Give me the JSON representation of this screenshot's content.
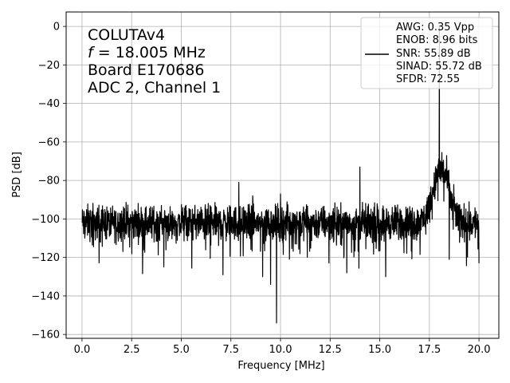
{
  "chart_data": {
    "type": "line",
    "xlabel": "Frequency [MHz]",
    "ylabel": "PSD [dB]",
    "xlim": [
      -0.8,
      21.0
    ],
    "ylim": [
      -162,
      7.5
    ],
    "xticks": [
      0.0,
      2.5,
      5.0,
      7.5,
      10.0,
      12.5,
      15.0,
      17.5,
      20.0
    ],
    "xtick_labels": [
      "0.0",
      "2.5",
      "5.0",
      "7.5",
      "10.0",
      "12.5",
      "15.0",
      "17.5",
      "20.0"
    ],
    "yticks": [
      0,
      -20,
      -40,
      -60,
      -80,
      -100,
      -120,
      -140,
      -160
    ],
    "ytick_labels": [
      "0",
      "−20",
      "−40",
      "−60",
      "−80",
      "−100",
      "−120",
      "−140",
      "−160"
    ],
    "grid": true,
    "line_color": "#000000",
    "annotation": {
      "line1": "COLUTAv4",
      "line2_var": "f",
      "line2_rest": " = 18.005 MHz",
      "line3": "Board E170686",
      "line4": "ADC 2, Channel 1"
    },
    "legend": {
      "placement": "top-right",
      "lines": [
        "AWG: 0.35 Vpp",
        "ENOB: 8.96 bits",
        "SNR: 55.89 dB",
        "SINAD: 55.72 dB",
        "SFDR: 72.55"
      ]
    },
    "series": [
      {
        "noise_floor_db": -102,
        "noise_spread_db": 7,
        "x_range": [
          0.0,
          20.0
        ],
        "signal_peak": {
          "x": 18.005,
          "y": 0
        },
        "spurs": [
          {
            "x": 4.0,
            "y": -93
          },
          {
            "x": 7.9,
            "y": -81
          },
          {
            "x": 8.6,
            "y": -88
          },
          {
            "x": 10.0,
            "y": -87
          },
          {
            "x": 14.0,
            "y": -73
          },
          {
            "x": 17.05,
            "y": -98
          },
          {
            "x": 18.6,
            "y": -86
          },
          {
            "x": 20.0,
            "y": -83
          }
        ],
        "dips": [
          {
            "x": 7.1,
            "y": -129
          },
          {
            "x": 9.1,
            "y": -130
          },
          {
            "x": 9.5,
            "y": -134
          },
          {
            "x": 9.8,
            "y": -154
          },
          {
            "x": 15.3,
            "y": -130
          },
          {
            "x": 18.5,
            "y": -121
          },
          {
            "x": 20.0,
            "y": -123
          }
        ],
        "bump": {
          "center": 18.1,
          "width": 0.55,
          "peak_db": -80
        }
      }
    ]
  }
}
